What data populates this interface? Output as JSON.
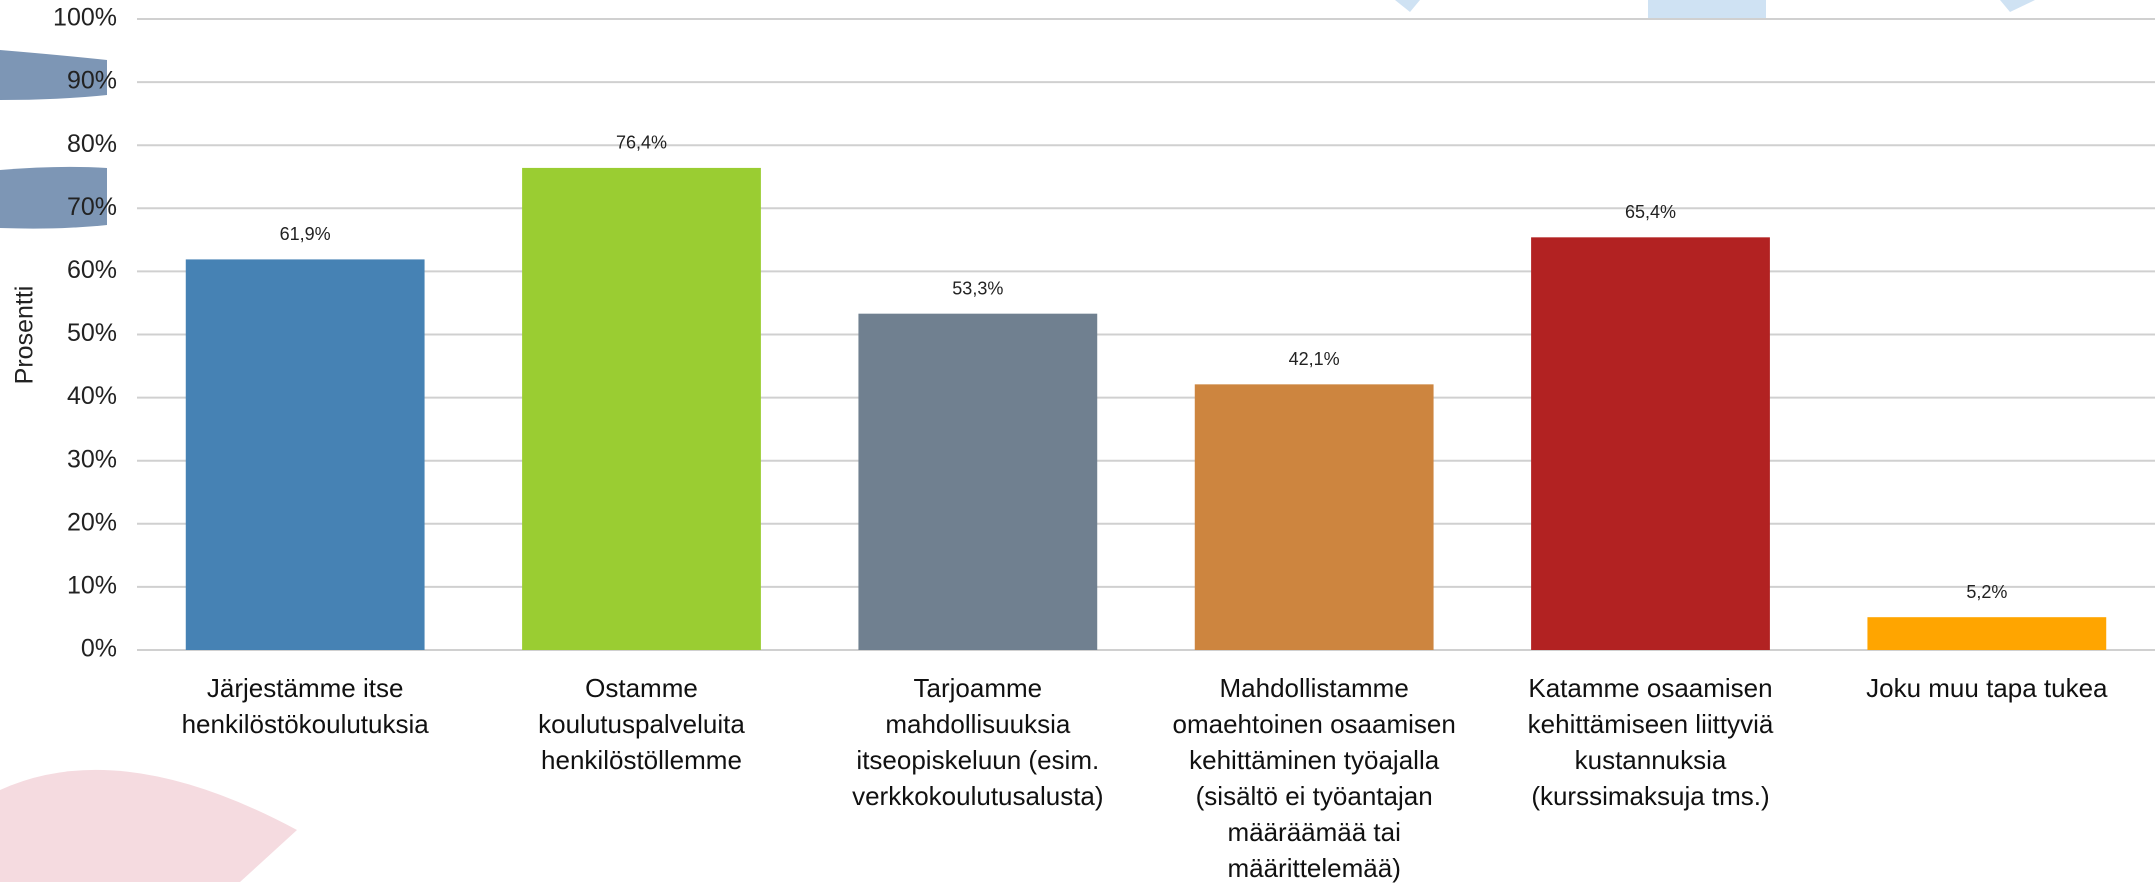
{
  "chart_data": {
    "type": "bar",
    "y_label": "Prosentti",
    "categories": [
      "Järjestämme itse henkilöstökoulutuksia",
      "Ostamme koulutuspalveluita henkilöstöllemme",
      "Tarjoamme mahdollisuuksia itseopiskeluun (esim. verkkokoulutusalusta)",
      "Mahdollistamme omaehtoinen osaamisen kehittäminen työajalla (sisältö ei työantajan määräämää tai määrittelemää)",
      "Katamme osaamisen kehittämiseen liittyviä kustannuksia (kurssimaksuja tms.)",
      "Joku muu tapa tukea"
    ],
    "values": [
      61.9,
      76.4,
      53.3,
      42.1,
      65.4,
      5.2
    ],
    "value_labels": [
      "61,9%",
      "76,4%",
      "53,3%",
      "42,1%",
      "65,4%",
      "5,2%"
    ],
    "colors": [
      "#4682b4",
      "#9acd32",
      "#708090",
      "#cd853f",
      "#b22222",
      "#ffa500"
    ],
    "ylim": [
      0,
      100
    ],
    "yticks": [
      {
        "value": 0,
        "label": "0%"
      },
      {
        "value": 10,
        "label": "10%"
      },
      {
        "value": 20,
        "label": "20%"
      },
      {
        "value": 30,
        "label": "30%"
      },
      {
        "value": 40,
        "label": "40%"
      },
      {
        "value": 50,
        "label": "50%"
      },
      {
        "value": 60,
        "label": "60%"
      },
      {
        "value": 70,
        "label": "70%"
      },
      {
        "value": 80,
        "label": "80%"
      },
      {
        "value": 90,
        "label": "90%"
      },
      {
        "value": 100,
        "label": "100%"
      }
    ],
    "grid": true
  }
}
